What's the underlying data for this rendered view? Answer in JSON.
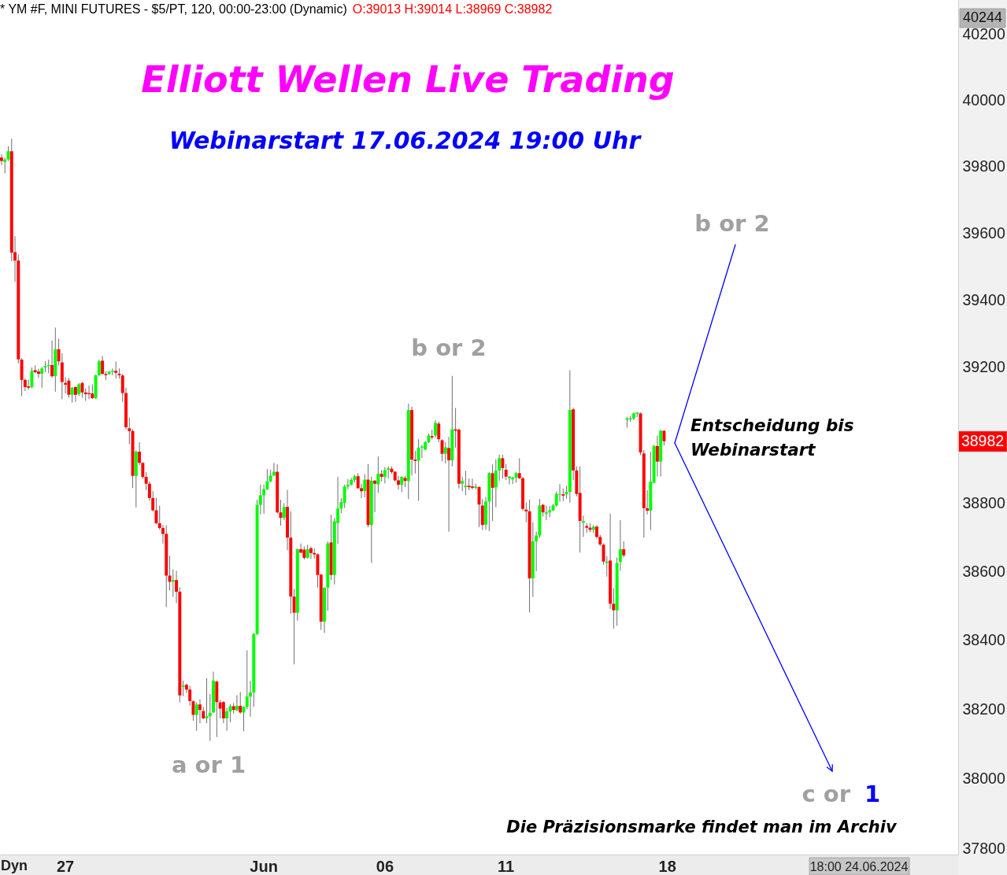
{
  "chart_data": {
    "type": "candlestick",
    "title": "Elliott Wellen Live Trading",
    "subtitle": "Webinarstart 17.06.2024 19:00 Uhr",
    "categories": [
      null,
      null,
      null,
      null,
      null,
      null,
      null,
      null,
      null,
      null,
      null,
      null,
      null,
      null,
      null,
      null,
      null,
      null,
      null,
      "27",
      null,
      null,
      null,
      null,
      null,
      null,
      null,
      null,
      null,
      null,
      null,
      null,
      null,
      null,
      null,
      null,
      null,
      null,
      null,
      null,
      null,
      null,
      null,
      null,
      null,
      null,
      null,
      null,
      null,
      null,
      null,
      null,
      null,
      null,
      null,
      null,
      null,
      null,
      null,
      null,
      null,
      null,
      null,
      null,
      null,
      null,
      null,
      null,
      null,
      null,
      null,
      null,
      null,
      null,
      null,
      null,
      null,
      null,
      "Jun",
      null,
      null,
      null,
      null,
      null,
      null,
      null,
      null,
      null,
      null,
      null,
      null,
      null,
      null,
      null,
      null,
      null,
      null,
      null,
      null,
      null,
      null,
      null,
      null,
      null,
      null,
      null,
      null,
      null,
      null,
      null,
      null,
      null,
      null,
      null,
      "06",
      null,
      null,
      null,
      null,
      null,
      null,
      null,
      null,
      null,
      null,
      null,
      null,
      null,
      null,
      null,
      null,
      null,
      null,
      null,
      null,
      null,
      null,
      null,
      null,
      null,
      null,
      null,
      null,
      null,
      null,
      null,
      null,
      null,
      null,
      null,
      "11",
      null,
      null,
      null,
      null,
      null,
      null,
      null,
      null,
      null,
      null,
      null,
      null,
      null,
      null,
      null,
      null,
      null,
      null,
      null,
      null,
      null,
      null,
      null,
      null,
      null,
      null,
      null,
      null,
      null,
      null,
      null,
      null,
      null,
      null,
      null,
      null,
      null,
      null,
      null,
      null,
      null,
      null,
      null,
      null,
      null,
      null,
      null,
      "18",
      null,
      null,
      null,
      null,
      null,
      null,
      null,
      null,
      null,
      null,
      null,
      null,
      null,
      null,
      null,
      null,
      null,
      null,
      null,
      null,
      null,
      null,
      null,
      null,
      null,
      null,
      null,
      null,
      null,
      null,
      null,
      null,
      null,
      null,
      null,
      null,
      null,
      null,
      null,
      null,
      null,
      null,
      null,
      null,
      null,
      null,
      null,
      null,
      null,
      null,
      null,
      null,
      null,
      null,
      null,
      null,
      null,
      null,
      null,
      null,
      null,
      null,
      null,
      null,
      null,
      null,
      null,
      null,
      null,
      null,
      null,
      null,
      null,
      null,
      null,
      null,
      null,
      null,
      null,
      null,
      null,
      null,
      null,
      null,
      null,
      null
    ],
    "ohlc": [
      [
        39827,
        39837,
        39804,
        39817
      ],
      [
        39814,
        39827,
        39779,
        39821
      ],
      [
        39821,
        39861,
        39817,
        39846
      ],
      [
        39846,
        39884,
        39516,
        39542
      ],
      [
        39543,
        39591,
        39454,
        39518
      ],
      [
        39518,
        39536,
        39212,
        39224
      ],
      [
        39223,
        39228,
        39115,
        39163
      ],
      [
        39163,
        39167,
        39130,
        39142
      ],
      [
        39144,
        39164,
        39134,
        39140
      ],
      [
        39142,
        39200,
        39138,
        39190
      ],
      [
        39192,
        39206,
        39183,
        39186
      ],
      [
        39188,
        39196,
        39169,
        39181
      ],
      [
        39181,
        39201,
        39140,
        39197
      ],
      [
        39200,
        39218,
        39186,
        39204
      ],
      [
        39204,
        39223,
        39183,
        39207
      ],
      [
        39207,
        39280,
        39169,
        39174
      ],
      [
        39174,
        39318,
        39128,
        39254
      ],
      [
        39254,
        39285,
        39206,
        39218
      ],
      [
        39215,
        39242,
        39106,
        39157
      ],
      [
        39154,
        39171,
        39123,
        39149
      ],
      [
        39161,
        39169,
        39111,
        39119
      ],
      [
        39119,
        39142,
        39096,
        39140
      ],
      [
        39142,
        39144,
        39098,
        39119
      ],
      [
        39121,
        39154,
        39115,
        39150
      ],
      [
        39154,
        39157,
        39111,
        39126
      ],
      [
        39126,
        39138,
        39101,
        39121
      ],
      [
        39124,
        39146,
        39106,
        39121
      ],
      [
        39123,
        39150,
        39106,
        39109
      ],
      [
        39109,
        39178,
        39107,
        39177
      ],
      [
        39177,
        39223,
        39175,
        39218
      ],
      [
        39220,
        39234,
        39178,
        39181
      ],
      [
        39181,
        39189,
        39163,
        39177
      ],
      [
        39181,
        39190,
        39178,
        39187
      ],
      [
        39187,
        39197,
        39177,
        39190
      ],
      [
        39190,
        39218,
        39167,
        39184
      ],
      [
        39181,
        39197,
        39167,
        39177
      ],
      [
        39176,
        39181,
        39098,
        39124
      ],
      [
        39124,
        39140,
        39016,
        39023
      ],
      [
        39020,
        39051,
        38973,
        39012
      ],
      [
        39012,
        39017,
        38844,
        38880
      ],
      [
        38880,
        38955,
        38787,
        38951
      ],
      [
        38951,
        38979,
        38912,
        38918
      ],
      [
        38918,
        38920,
        38871,
        38877
      ],
      [
        38877,
        38891,
        38838,
        38857
      ],
      [
        38857,
        38864,
        38807,
        38815
      ],
      [
        38815,
        38835,
        38775,
        38779
      ],
      [
        38779,
        38815,
        38738,
        38741
      ],
      [
        38741,
        38793,
        38722,
        38727
      ],
      [
        38727,
        38736,
        38681,
        38710
      ],
      [
        38710,
        38735,
        38496,
        38588
      ],
      [
        38588,
        38646,
        38545,
        38570
      ],
      [
        38570,
        38606,
        38526,
        38575
      ],
      [
        38575,
        38602,
        38508,
        38541
      ],
      [
        38541,
        38554,
        38220,
        38240
      ],
      [
        38265,
        38283,
        38238,
        38269
      ],
      [
        38271,
        38274,
        38247,
        38257
      ],
      [
        38257,
        38268,
        38210,
        38224
      ],
      [
        38223,
        38226,
        38167,
        38184
      ],
      [
        38184,
        38220,
        38138,
        38214
      ],
      [
        38214,
        38229,
        38160,
        38198
      ],
      [
        38195,
        38207,
        38171,
        38174
      ],
      [
        38174,
        38290,
        38160,
        38180
      ],
      [
        38180,
        38244,
        38109,
        38190
      ],
      [
        38191,
        38309,
        38190,
        38283
      ],
      [
        38280,
        38283,
        38120,
        38221
      ],
      [
        38220,
        38227,
        38174,
        38202
      ],
      [
        38221,
        38224,
        38160,
        38174
      ],
      [
        38174,
        38204,
        38138,
        38194
      ],
      [
        38194,
        38215,
        38163,
        38209
      ],
      [
        38209,
        38218,
        38188,
        38198
      ],
      [
        38198,
        38241,
        38194,
        38210
      ],
      [
        38210,
        38250,
        38187,
        38191
      ],
      [
        38191,
        38209,
        38137,
        38207
      ],
      [
        38207,
        38371,
        38200,
        38237
      ],
      [
        38237,
        38282,
        38179,
        38249
      ],
      [
        38249,
        38421,
        38207,
        38418
      ],
      [
        38418,
        38810,
        38415,
        38795
      ],
      [
        38795,
        38855,
        38767,
        38823
      ],
      [
        38823,
        38855,
        38769,
        38841
      ],
      [
        38841,
        38900,
        38838,
        38864
      ],
      [
        38864,
        38898,
        38861,
        38881
      ],
      [
        38881,
        38918,
        38879,
        38892
      ],
      [
        38892,
        38914,
        38769,
        38773
      ],
      [
        38773,
        38810,
        38734,
        38757
      ],
      [
        38757,
        38800,
        38750,
        38789
      ],
      [
        38789,
        38839,
        38662,
        38699
      ],
      [
        38699,
        38776,
        38477,
        38527
      ],
      [
        38527,
        38549,
        38330,
        38480
      ],
      [
        38480,
        38667,
        38457,
        38665
      ],
      [
        38665,
        38682,
        38653,
        38655
      ],
      [
        38664,
        38673,
        38635,
        38640
      ],
      [
        38640,
        38678,
        38638,
        38665
      ],
      [
        38668,
        38673,
        38637,
        38654
      ],
      [
        38654,
        38667,
        38638,
        38650
      ],
      [
        38650,
        38653,
        38553,
        38590
      ],
      [
        38591,
        38593,
        38430,
        38454
      ],
      [
        38454,
        38554,
        38421,
        38553
      ],
      [
        38553,
        38688,
        38486,
        38682
      ],
      [
        38685,
        38766,
        38575,
        38590
      ],
      [
        38590,
        38756,
        38562,
        38747
      ],
      [
        38742,
        38877,
        38681,
        38784
      ],
      [
        38784,
        38815,
        38771,
        38803
      ],
      [
        38801,
        38854,
        38786,
        38849
      ],
      [
        38849,
        38871,
        38841,
        38854
      ],
      [
        38854,
        38874,
        38852,
        38868
      ],
      [
        38868,
        38883,
        38861,
        38879
      ],
      [
        38879,
        38888,
        38841,
        38844
      ],
      [
        38844,
        38856,
        38815,
        38835
      ],
      [
        38835,
        38885,
        38817,
        38869
      ],
      [
        38869,
        38915,
        38729,
        38736
      ],
      [
        38736,
        38878,
        38625,
        38866
      ],
      [
        38866,
        38868,
        38773,
        38857
      ],
      [
        38855,
        38937,
        38830,
        38886
      ],
      [
        38886,
        38897,
        38864,
        38877
      ],
      [
        38877,
        38906,
        38858,
        38897
      ],
      [
        38898,
        38908,
        38872,
        38902
      ],
      [
        38901,
        38908,
        38886,
        38891
      ],
      [
        38892,
        38895,
        38863,
        38867
      ],
      [
        38867,
        38880,
        38840,
        38854
      ],
      [
        38854,
        38879,
        38833,
        38877
      ],
      [
        38874,
        38880,
        38847,
        38865
      ],
      [
        38865,
        39093,
        38812,
        39074
      ],
      [
        39074,
        39084,
        38881,
        38928
      ],
      [
        38928,
        38954,
        38887,
        38924
      ],
      [
        38925,
        38988,
        38807,
        38963
      ],
      [
        38963,
        38971,
        38933,
        38966
      ],
      [
        38957,
        38983,
        38956,
        38979
      ],
      [
        38979,
        39005,
        38977,
        38999
      ],
      [
        38997,
        39016,
        38987,
        38993
      ],
      [
        38999,
        39044,
        38993,
        39036
      ],
      [
        39034,
        39040,
        38979,
        38988
      ],
      [
        38985,
        38988,
        38923,
        38945
      ],
      [
        38945,
        38979,
        38917,
        38964
      ],
      [
        38962,
        38995,
        38716,
        38926
      ],
      [
        38926,
        39175,
        38908,
        39017
      ],
      [
        39017,
        39080,
        38963,
        39013
      ],
      [
        39016,
        39020,
        38843,
        38857
      ],
      [
        38857,
        38878,
        38835,
        38865
      ],
      [
        38847,
        38895,
        38823,
        38851
      ],
      [
        38851,
        38872,
        38838,
        38847
      ],
      [
        38849,
        38872,
        38840,
        38845
      ],
      [
        38845,
        38857,
        38840,
        38849
      ],
      [
        38847,
        38849,
        38730,
        38796
      ],
      [
        38793,
        38812,
        38721,
        38736
      ],
      [
        38737,
        38818,
        38722,
        38805
      ],
      [
        38805,
        38891,
        38718,
        38888
      ],
      [
        38888,
        38914,
        38748,
        38845
      ],
      [
        38846,
        38929,
        38788,
        38896
      ],
      [
        38896,
        38943,
        38866,
        38932
      ],
      [
        38932,
        38942,
        38872,
        38903
      ],
      [
        38898,
        38915,
        38868,
        38878
      ],
      [
        38873,
        38880,
        38855,
        38878
      ],
      [
        38870,
        38878,
        38856,
        38875
      ],
      [
        38875,
        38892,
        38860,
        38888
      ],
      [
        38888,
        38932,
        38871,
        38873
      ],
      [
        38873,
        38878,
        38778,
        38783
      ],
      [
        38781,
        38802,
        38744,
        38776
      ],
      [
        38776,
        38810,
        38481,
        38580
      ],
      [
        38580,
        38744,
        38526,
        38688
      ],
      [
        38688,
        38717,
        38601,
        38705
      ],
      [
        38705,
        38812,
        38698,
        38793
      ],
      [
        38795,
        38798,
        38761,
        38773
      ],
      [
        38769,
        38793,
        38750,
        38773
      ],
      [
        38773,
        38792,
        38759,
        38779
      ],
      [
        38779,
        38798,
        38776,
        38793
      ],
      [
        38793,
        38834,
        38789,
        38827
      ],
      [
        38825,
        38856,
        38804,
        38827
      ],
      [
        38826,
        38843,
        38806,
        38822
      ],
      [
        38826,
        38851,
        38813,
        38833
      ],
      [
        38833,
        39192,
        38801,
        39074
      ],
      [
        39076,
        39081,
        38868,
        38896
      ],
      [
        38896,
        38908,
        38820,
        38827
      ],
      [
        38830,
        38908,
        38655,
        38748
      ],
      [
        38743,
        38763,
        38701,
        38748
      ],
      [
        38733,
        38741,
        38713,
        38728
      ],
      [
        38728,
        38741,
        38715,
        38722
      ],
      [
        38722,
        38735,
        38713,
        38731
      ],
      [
        38731,
        38736,
        38696,
        38701
      ],
      [
        38701,
        38707,
        38674,
        38679
      ],
      [
        38678,
        38682,
        38620,
        38629
      ],
      [
        38625,
        38645,
        38585,
        38629
      ],
      [
        38632,
        38769,
        38491,
        38506
      ],
      [
        38506,
        38551,
        38434,
        38487
      ],
      [
        38487,
        38641,
        38442,
        38625
      ],
      [
        38628,
        38750,
        38602,
        38665
      ],
      [
        38665,
        38688,
        38641,
        38647
      ],
      [
        39045,
        39054,
        39022,
        39049
      ],
      [
        39047,
        39057,
        39039,
        39050
      ],
      [
        39049,
        39068,
        39044,
        39064
      ],
      [
        39063,
        39068,
        39053,
        39067
      ],
      [
        39064,
        39067,
        38941,
        38949
      ],
      [
        38946,
        38956,
        38699,
        38785
      ],
      [
        38785,
        38838,
        38767,
        38778
      ],
      [
        38778,
        38951,
        38721,
        38863
      ],
      [
        38860,
        38971,
        38858,
        38968
      ],
      [
        38968,
        38998,
        38878,
        38922
      ],
      [
        38922,
        39016,
        38878,
        39013
      ],
      [
        39013,
        39014,
        38969,
        38982
      ],
      null,
      null,
      null,
      null,
      null,
      null,
      null,
      null,
      null,
      null,
      null,
      null,
      null,
      null,
      null,
      null,
      null,
      null,
      null,
      null,
      null,
      null,
      null,
      null,
      null,
      null,
      null,
      null,
      null,
      null,
      null,
      null,
      null,
      null,
      null,
      null,
      null,
      null,
      null,
      null,
      null,
      null,
      null,
      null,
      null,
      null,
      null,
      null,
      null,
      null,
      null,
      null,
      null,
      null,
      null,
      null,
      null,
      null,
      null,
      null,
      null,
      null,
      null,
      null,
      null,
      null,
      null,
      null,
      null,
      null,
      null,
      null,
      null,
      null,
      null,
      null,
      null,
      null,
      null,
      null,
      null,
      null,
      null,
      null,
      null,
      null,
      null
    ],
    "colors": [
      "#ff0000",
      "#00ff00",
      "#00ff00",
      "#ff0000",
      "#ff0000",
      "#ff0000",
      "#ff0000",
      "#ff0000",
      "#ff0000",
      "#00ff00",
      "#ff0000",
      "#ff0000",
      "#00ff00",
      "#00ff00",
      "#00ff00",
      "#ff0000",
      "#00ff00",
      "#ff0000",
      "#ff0000",
      "#ff0000",
      "#ff0000",
      "#00ff00",
      "#ff0000",
      "#00ff00",
      "#ff0000",
      "#ff0000",
      "#ff0000",
      "#ff0000",
      "#00ff00",
      "#00ff00",
      "#ff0000",
      "#ff0000",
      "#00ff00",
      "#00ff00",
      "#ff0000",
      "#ff0000",
      "#ff0000",
      "#ff0000",
      "#ff0000",
      "#ff0000",
      "#00ff00",
      "#ff0000",
      "#ff0000",
      "#ff0000",
      "#ff0000",
      "#ff0000",
      "#ff0000",
      "#ff0000",
      "#ff0000",
      "#ff0000",
      "#ff0000",
      "#00ff00",
      "#ff0000",
      "#ff0000",
      "#00ff00",
      "#ff0000",
      "#ff0000",
      "#ff0000",
      "#00ff00",
      "#ff0000",
      "#ff0000",
      "#00ff00",
      "#00ff00",
      "#00ff00",
      "#ff0000",
      "#ff0000",
      "#ff0000",
      "#00ff00",
      "#00ff00",
      "#ff0000",
      "#00ff00",
      "#ff0000",
      "#00ff00",
      "#00ff00",
      "#00ff00",
      "#00ff00",
      "#00ff00",
      "#00ff00",
      "#00ff00",
      "#00ff00",
      "#00ff00",
      "#00ff00",
      "#ff0000",
      "#ff0000",
      "#00ff00",
      "#ff0000",
      "#ff0000",
      "#ff0000",
      "#00ff00",
      "#ff0000",
      "#ff0000",
      "#00ff00",
      "#ff0000",
      "#ff0000",
      "#ff0000",
      "#ff0000",
      "#00ff00",
      "#00ff00",
      "#ff0000",
      "#00ff00",
      "#00ff00",
      "#00ff00",
      "#00ff00",
      "#00ff00",
      "#00ff00",
      "#00ff00",
      "#ff0000",
      "#ff0000",
      "#00ff00",
      "#ff0000",
      "#00ff00",
      "#ff0000",
      "#00ff00",
      "#ff0000",
      "#00ff00",
      "#00ff00",
      "#ff0000",
      "#ff0000",
      "#ff0000",
      "#00ff00",
      "#ff0000",
      "#00ff00",
      "#ff0000",
      "#ff0000",
      "#00ff00",
      "#00ff00",
      "#00ff00",
      "#00ff00",
      "#ff0000",
      "#00ff00",
      "#ff0000",
      "#ff0000",
      "#00ff00",
      "#ff0000",
      "#00ff00",
      "#ff0000",
      "#ff0000",
      "#00ff00",
      "#00ff00",
      "#ff0000",
      "#ff0000",
      "#00ff00",
      "#ff0000",
      "#ff0000",
      "#00ff00",
      "#00ff00",
      "#ff0000",
      "#00ff00",
      "#00ff00",
      "#ff0000",
      "#ff0000",
      "#00ff00",
      "#00ff00",
      "#00ff00",
      "#ff0000",
      "#ff0000",
      "#ff0000",
      "#ff0000",
      "#00ff00",
      "#00ff00",
      "#00ff00",
      "#ff0000",
      "#00ff00",
      "#00ff00",
      "#00ff00",
      "#00ff00",
      "#00ff00",
      "#ff0000",
      "#00ff00",
      "#00ff00",
      "#ff0000",
      "#ff0000",
      "#ff0000",
      "#00ff00",
      "#ff0000",
      "#ff0000",
      "#00ff00",
      "#ff0000",
      "#ff0000",
      "#ff0000",
      "#00ff00",
      "#ff0000",
      "#ff0000",
      "#00ff00",
      "#00ff00",
      "#ff0000",
      "#00ff00",
      "#00ff00",
      "#00ff00",
      "#00ff00",
      "#ff0000",
      "#ff0000",
      "#ff0000",
      "#00ff00",
      "#00ff00",
      "#ff0000",
      "#00ff00",
      "#ff0000",
      null,
      null,
      null,
      null,
      null,
      null,
      null,
      null,
      null,
      null,
      null,
      null,
      null,
      null,
      null,
      null,
      null,
      null,
      null,
      null,
      null,
      null,
      null,
      null,
      null,
      null,
      null,
      null,
      null,
      null,
      null,
      null,
      null,
      null,
      null,
      null,
      null,
      null,
      null,
      null,
      null,
      null,
      null,
      null,
      null,
      null,
      null,
      null,
      null,
      null,
      null,
      null,
      null,
      null,
      null,
      null,
      null,
      null,
      null,
      null,
      null,
      null,
      null,
      null,
      null,
      null,
      null,
      null,
      null,
      null,
      null,
      null,
      null,
      null,
      null,
      null,
      null,
      null,
      null,
      null,
      null,
      null,
      null,
      null,
      null,
      null,
      null
    ],
    "log": true,
    "ylim": [
      37783,
      40304
    ],
    "yticks": [
      37800,
      38000,
      38200,
      38400,
      38600,
      38800,
      39200,
      39400,
      39600,
      39800,
      40000,
      40200
    ],
    "annotations": [
      "* YM #F, MINI FUTURES - $5/PT, 120, 00:00-23:00 (Dynamic)",
      "O:39013 H:39014 L:38969 C:38982",
      "Entscheidung bis\nWebinarstart",
      "Die Präzisionsmarke findet man im Archiv",
      "Dyn",
      "18:00 24.06.2024",
      "b or 2",
      "b or 2",
      "a or 1",
      "c or 1",
      "40244",
      "38982"
    ]
  }
}
